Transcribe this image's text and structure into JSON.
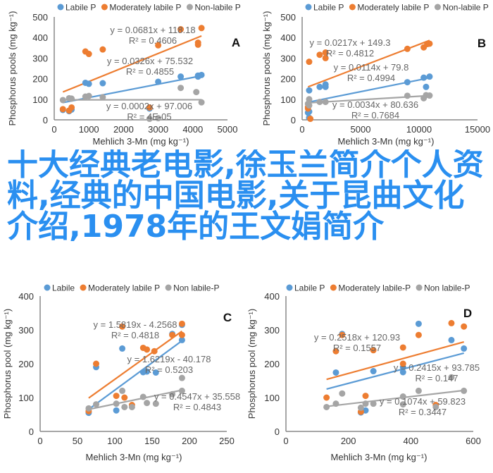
{
  "colors": {
    "labile": "#5B9BD5",
    "moderate": "#ED7D31",
    "non": "#A5A5A5",
    "overlay": "#2a8ff0"
  },
  "overlay_text": "十大经典老电影,徐玉兰简介个人资料,经典的中国电影,关于昆曲文化介绍,1978年的王文娟简介",
  "chart_data": [
    {
      "panel": "A",
      "type": "scatter",
      "ylabel": "Phosphorus pools (mg kg⁻¹)",
      "xlabel": "Mehlich 3-Mn (mg kg⁻¹)",
      "xlim": [
        0,
        5000
      ],
      "ylim": [
        0,
        500
      ],
      "xticks": [
        "0",
        "1000",
        "2000",
        "3000",
        "4000",
        "5000"
      ],
      "yticks": [
        "0",
        "100",
        "200",
        "300",
        "400",
        "500"
      ],
      "legend": "top",
      "series": [
        {
          "name": "Labile P",
          "key": "labile",
          "points": [
            [
              250,
              48
            ],
            [
              430,
              42
            ],
            [
              500,
              50
            ],
            [
              900,
              180
            ],
            [
              1000,
              175
            ],
            [
              1400,
              178
            ],
            [
              2750,
              55
            ],
            [
              3000,
              185
            ],
            [
              3650,
              210
            ],
            [
              4150,
              215
            ],
            [
              4150,
              210
            ],
            [
              4250,
              218
            ]
          ],
          "trend": {
            "slope": 0.0326,
            "intercept": 75.532,
            "range": [
              250,
              4250
            ]
          },
          "equation": "y = 0.0326x + 75.532",
          "r2": "R² = 0.4855"
        },
        {
          "name": "Moderately labile P",
          "key": "moderate",
          "points": [
            [
              250,
              52
            ],
            [
              430,
              45
            ],
            [
              500,
              60
            ],
            [
              900,
              332
            ],
            [
              1000,
              320
            ],
            [
              1400,
              342
            ],
            [
              2750,
              60
            ],
            [
              3000,
              362
            ],
            [
              3650,
              440
            ],
            [
              4150,
              365
            ],
            [
              4150,
              375
            ],
            [
              4250,
              446
            ]
          ],
          "trend": {
            "slope": 0.0681,
            "intercept": 118.18,
            "range": [
              250,
              4250
            ]
          },
          "equation": "y = 0.0681x + 118.18",
          "r2": "R² = 0.4606"
        },
        {
          "name": "Non-labile P",
          "key": "non",
          "points": [
            [
              250,
              96
            ],
            [
              430,
              105
            ],
            [
              500,
              103
            ],
            [
              900,
              113
            ],
            [
              1000,
              116
            ],
            [
              1400,
              110
            ],
            [
              2750,
              5
            ],
            [
              3000,
              8
            ],
            [
              3650,
              155
            ],
            [
              4100,
              135
            ],
            [
              4250,
              85
            ]
          ],
          "trend": {
            "slope": 0.0002,
            "intercept": 97.006,
            "range": [
              250,
              4250
            ]
          },
          "equation": "y = 0.0002x + 97.006",
          "r2": "R² = 4E-05"
        }
      ]
    },
    {
      "panel": "B",
      "type": "scatter",
      "ylabel": "Phosphorus pools (mg kg⁻¹)",
      "xlabel": "Mehlich 3-Mn (mg kg⁻¹)",
      "xlim": [
        0,
        15000
      ],
      "ylim": [
        0,
        500
      ],
      "xticks": [
        "0",
        "5000",
        "10000",
        "15000"
      ],
      "yticks": [
        "0",
        "100",
        "200",
        "300",
        "400",
        "500"
      ],
      "legend": "top",
      "series": [
        {
          "name": "Labile P",
          "key": "labile",
          "points": [
            [
              500,
              35
            ],
            [
              600,
              40
            ],
            [
              600,
              10
            ],
            [
              600,
              143
            ],
            [
              1500,
              160
            ],
            [
              2000,
              172
            ],
            [
              2000,
              160
            ],
            [
              9000,
              183
            ],
            [
              10400,
              205
            ],
            [
              10600,
              160
            ],
            [
              10900,
              210
            ]
          ],
          "trend": {
            "slope": 0.0114,
            "intercept": 79.8,
            "range": [
              500,
              10900
            ]
          },
          "equation": "y = 0.0114x + 79.8",
          "r2": "R² = 0.4994"
        },
        {
          "name": "Moderately labile P",
          "key": "moderate",
          "points": [
            [
              600,
              282
            ],
            [
              500,
              62
            ],
            [
              500,
              55
            ],
            [
              700,
              5
            ],
            [
              1500,
              316
            ],
            [
              2000,
              327
            ],
            [
              2000,
              300
            ],
            [
              9000,
              345
            ],
            [
              10400,
              352
            ],
            [
              10700,
              368
            ],
            [
              10900,
              370
            ]
          ],
          "trend": {
            "slope": 0.0217,
            "intercept": 149.3,
            "range": [
              500,
              10900
            ]
          },
          "equation": "y = 0.0217x + 149.3",
          "r2": "R² = 0.4812"
        },
        {
          "name": "Non-labile P",
          "key": "non",
          "points": [
            [
              500,
              78
            ],
            [
              600,
              100
            ],
            [
              600,
              70
            ],
            [
              1500,
              87
            ],
            [
              2000,
              87
            ],
            [
              9000,
              117
            ],
            [
              10400,
              105
            ],
            [
              10600,
              120
            ],
            [
              10900,
              118
            ]
          ],
          "trend": {
            "slope": 0.0034,
            "intercept": 80.636,
            "range": [
              500,
              10900
            ]
          },
          "equation": "y = 0.0034x + 80.636",
          "r2": "R² = 0.7684"
        }
      ]
    },
    {
      "panel": "C",
      "type": "scatter",
      "ylabel": "Phosphorus pool (mg kg⁻¹)",
      "xlabel": "Mehlich 3-Mn (mg kg⁻¹)",
      "xlim": [
        0,
        250
      ],
      "ylim": [
        0,
        400
      ],
      "xticks": [
        "0",
        "50",
        "100",
        "150",
        "200",
        "250"
      ],
      "yticks": [
        "0",
        "100",
        "200",
        "300",
        "400"
      ],
      "legend": "top",
      "series": [
        {
          "name": "Labile",
          "key": "labile",
          "points": [
            [
              65,
              55
            ],
            [
              75,
              190
            ],
            [
              102,
              62
            ],
            [
              110,
              245
            ],
            [
              138,
              175
            ],
            [
              143,
              177
            ],
            [
              155,
              174
            ],
            [
              177,
              288
            ],
            [
              190,
              270
            ],
            [
              190,
              315
            ]
          ],
          "trend": {
            "slope": 1.6219,
            "intercept": -40.178,
            "range": [
              65,
              190
            ]
          },
          "equation": "y = 1.6219x - 40.178",
          "r2": "R² = 0.5203"
        },
        {
          "name": "Moderately labile P",
          "key": "moderate",
          "points": [
            [
              65,
              60
            ],
            [
              75,
              200
            ],
            [
              102,
              105
            ],
            [
              110,
              310
            ],
            [
              113,
              100
            ],
            [
              123,
              78
            ],
            [
              138,
              247
            ],
            [
              143,
              242
            ],
            [
              153,
              237
            ],
            [
              177,
              285
            ],
            [
              190,
              318
            ],
            [
              190,
              285
            ]
          ],
          "trend": {
            "slope": 1.5819,
            "intercept": -4.2568,
            "range": [
              65,
              190
            ]
          },
          "equation": "y = 1.5819x - 4.2568",
          "r2": "R² = 0.4818"
        },
        {
          "name": "Non labile-P",
          "key": "non",
          "points": [
            [
              65,
              68
            ],
            [
              75,
              80
            ],
            [
              102,
              82
            ],
            [
              110,
              120
            ],
            [
              113,
              72
            ],
            [
              123,
              72
            ],
            [
              138,
              102
            ],
            [
              143,
              84
            ],
            [
              155,
              82
            ],
            [
              177,
              110
            ],
            [
              190,
              158
            ],
            [
              190,
              120
            ]
          ],
          "trend": {
            "slope": 0.4547,
            "intercept": 35.558,
            "range": [
              65,
              190
            ]
          },
          "equation": "y = 0.4547x + 35.558",
          "r2": "R² = 0.4843"
        }
      ]
    },
    {
      "panel": "D",
      "type": "scatter",
      "ylabel": "Phosphorus pool (mg kg⁻¹)",
      "xlabel": "Mehlich 3-Mn (mg kg⁻¹)",
      "xlim": [
        0,
        600
      ],
      "ylim": [
        0,
        400
      ],
      "xticks": [
        "0",
        "200",
        "400",
        "600"
      ],
      "yticks": [
        "0",
        "100",
        "200",
        "300",
        "400"
      ],
      "legend": "top",
      "series": [
        {
          "name": "Labile P",
          "key": "labile",
          "points": [
            [
              160,
              174
            ],
            [
              180,
              288
            ],
            [
              240,
              56
            ],
            [
              255,
              62
            ],
            [
              280,
              178
            ],
            [
              375,
              190
            ],
            [
              375,
              175
            ],
            [
              425,
              318
            ],
            [
              530,
              270
            ],
            [
              570,
              245
            ]
          ],
          "trend": {
            "slope": 0.2415,
            "intercept": 93.785,
            "range": [
              130,
              570
            ]
          },
          "equation": "y = 0.2415x + 93.785",
          "r2": "R² = 0.147"
        },
        {
          "name": "Moderately labile-P",
          "key": "moderate",
          "points": [
            [
              130,
              100
            ],
            [
              160,
              237
            ],
            [
              180,
              285
            ],
            [
              240,
              58
            ],
            [
              255,
              105
            ],
            [
              280,
              240
            ],
            [
              375,
              248
            ],
            [
              375,
              200
            ],
            [
              425,
              285
            ],
            [
              480,
              78
            ],
            [
              530,
              320
            ],
            [
              570,
              310
            ]
          ],
          "trend": {
            "slope": 0.2518,
            "intercept": 120.93,
            "range": [
              130,
              570
            ]
          },
          "equation": "y = 0.2518x + 120.93",
          "r2": "R² = 0.1557"
        },
        {
          "name": "Non labile-P",
          "key": "non",
          "points": [
            [
              130,
              72
            ],
            [
              160,
              82
            ],
            [
              180,
              112
            ],
            [
              240,
              70
            ],
            [
              255,
              82
            ],
            [
              280,
              82
            ],
            [
              375,
              103
            ],
            [
              375,
              80
            ],
            [
              425,
              120
            ],
            [
              480,
              72
            ],
            [
              530,
              160
            ],
            [
              570,
              120
            ]
          ],
          "trend": {
            "slope": 0.1074,
            "intercept": 59.823,
            "range": [
              130,
              570
            ]
          },
          "equation": "y = 0.1074x + 59.823",
          "r2": "R² = 0.3447"
        }
      ]
    }
  ]
}
